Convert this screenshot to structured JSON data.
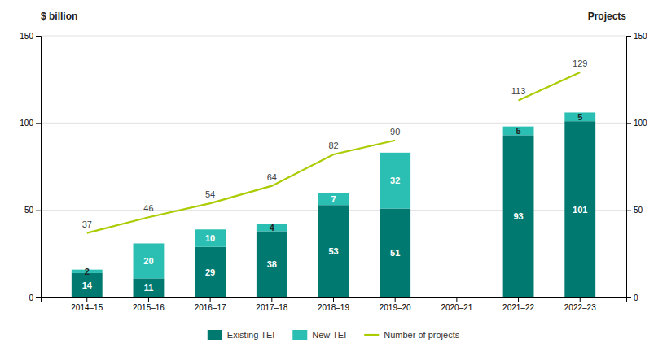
{
  "chart_data": {
    "type": "bar",
    "stacked": true,
    "ylabel": "$ billion",
    "y2label": "Projects",
    "categories": [
      "2014–15",
      "2015–16",
      "2016–17",
      "2017–18",
      "2018–19",
      "2019–20",
      "2020–21",
      "2021–22",
      "2022–23"
    ],
    "series": [
      {
        "name": "Existing TEI",
        "color": "#007A70",
        "values": [
          14,
          11,
          29,
          38,
          53,
          51,
          0,
          93,
          101
        ]
      },
      {
        "name": "New TEI",
        "color": "#2BBFB3",
        "values": [
          2,
          20,
          10,
          4,
          7,
          32,
          0,
          5,
          5
        ]
      },
      {
        "name": "Number of projects",
        "type": "line",
        "axis": "y2",
        "color": "#AACC00",
        "values": [
          37,
          46,
          54,
          64,
          82,
          90,
          null,
          113,
          129
        ]
      }
    ],
    "ylim": [
      0,
      150
    ],
    "yticks": [
      0,
      50,
      100,
      150
    ],
    "y2lim": [
      0,
      150
    ],
    "y2ticks": [
      0,
      50,
      100,
      150
    ],
    "grid": true,
    "data_labels": true,
    "legend": "bottom"
  }
}
